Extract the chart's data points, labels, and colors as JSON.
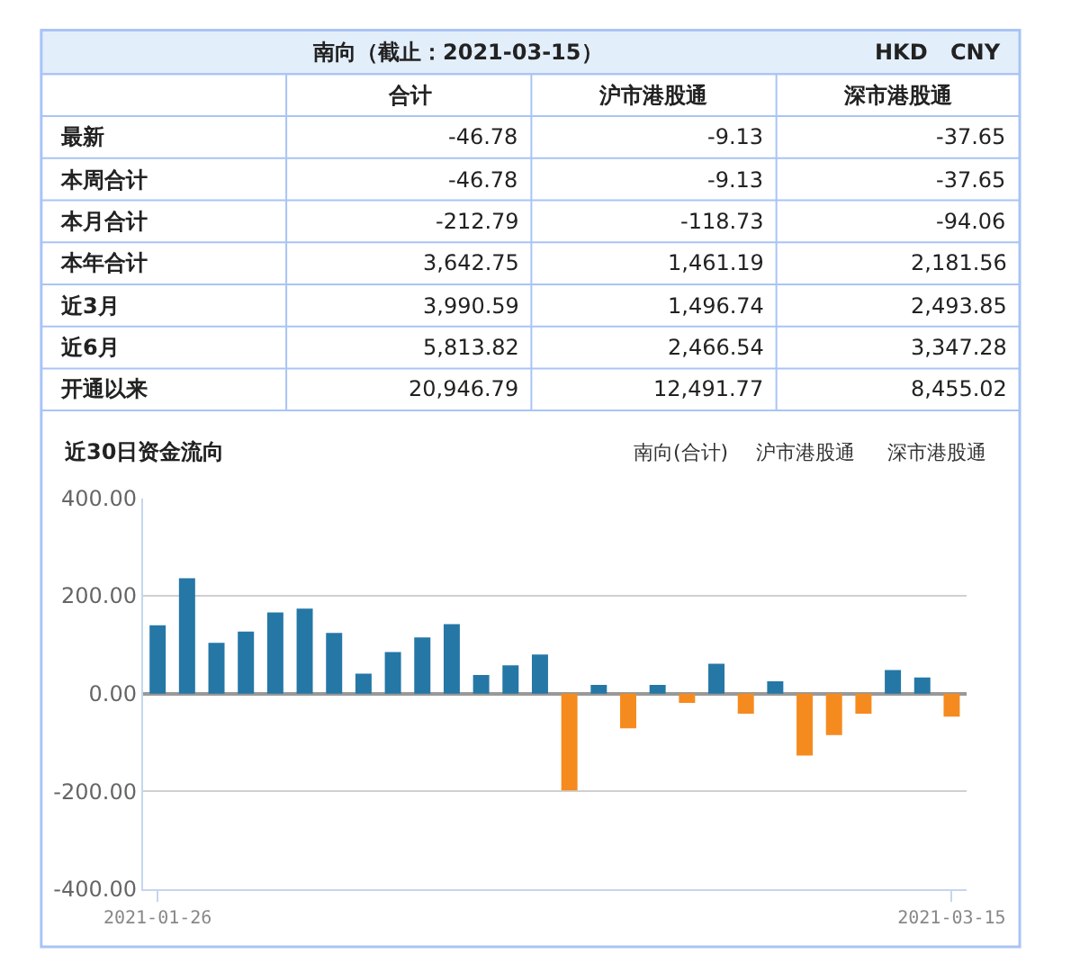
{
  "chart_data": [
    {
      "type": "other",
      "title": "南向（截止：2021-03-15）",
      "annotations": [
        "HKD",
        "CNY",
        "合计",
        "沪市港股通",
        "深市港股通",
        "最新",
        "-46.78",
        "-9.13",
        "-37.65",
        "本周合计",
        "-46.78",
        "-9.13",
        "-37.65",
        "本月合计",
        "-212.79",
        "-118.73",
        "-94.06",
        "本年合计",
        "3,642.75",
        "1,461.19",
        "2,181.56",
        "近3月",
        "3,990.59",
        "1,496.74",
        "2,493.85",
        "近6月",
        "5,813.82",
        "2,466.54",
        "3,347.28",
        "开通以来",
        "20,946.79",
        "12,491.77",
        "8,455.02"
      ]
    },
    {
      "type": "bar",
      "title": "近30日资金流向",
      "annotations": [
        "南向(合计)",
        "沪市港股通",
        "深市港股通"
      ],
      "categories": [
        "2021-01-26",
        null,
        null,
        null,
        null,
        null,
        null,
        null,
        null,
        null,
        null,
        null,
        null,
        null,
        null,
        null,
        null,
        null,
        null,
        null,
        null,
        null,
        null,
        null,
        null,
        null,
        null,
        "2021-03-15"
      ],
      "values": [
        140,
        236,
        104,
        127,
        166,
        174,
        124,
        41,
        85,
        115,
        142,
        38,
        58,
        80,
        -198,
        18,
        -71,
        18,
        -19,
        61,
        -41,
        25,
        -127,
        -85,
        -41,
        48,
        33,
        -47
      ],
      "colors": [
        "#2577a6",
        "#2577a6",
        "#2577a6",
        "#2577a6",
        "#2577a6",
        "#2577a6",
        "#2577a6",
        "#2577a6",
        "#2577a6",
        "#2577a6",
        "#2577a6",
        "#2577a6",
        "#2577a6",
        "#2577a6",
        "#f58b1f",
        "#2577a6",
        "#f58b1f",
        "#2577a6",
        "#f58b1f",
        "#2577a6",
        "#f58b1f",
        "#2577a6",
        "#f58b1f",
        "#f58b1f",
        "#f58b1f",
        "#2577a6",
        "#2577a6",
        "#f58b1f"
      ],
      "ylim": [
        -400,
        400
      ],
      "yticks": [
        {
          "value": -400,
          "label": "-400.00"
        },
        {
          "value": -200,
          "label": "-200.00"
        },
        {
          "value": 0,
          "label": "0.00"
        },
        {
          "value": 200,
          "label": "200.00"
        },
        {
          "value": 400,
          "label": "400.00"
        }
      ],
      "grid": "y"
    }
  ]
}
